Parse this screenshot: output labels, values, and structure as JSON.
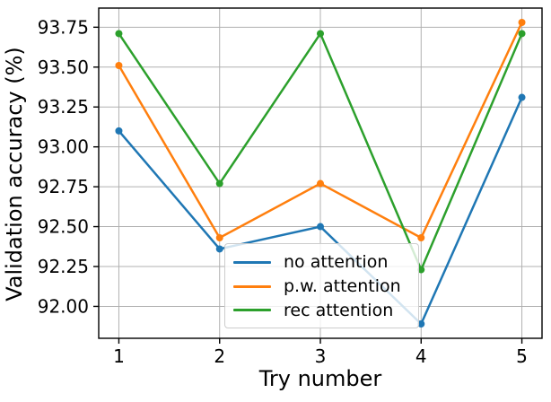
{
  "chart_data": {
    "type": "line",
    "title": "",
    "xlabel": "Try number",
    "ylabel": "Validation accuracy (%)",
    "x": [
      1,
      2,
      3,
      4,
      5
    ],
    "xtick_labels": [
      "1",
      "2",
      "3",
      "4",
      "5"
    ],
    "yticks": [
      92.0,
      92.25,
      92.5,
      92.75,
      93.0,
      93.25,
      93.5,
      93.75
    ],
    "ytick_labels": [
      "92.00",
      "92.25",
      "92.50",
      "92.75",
      "93.00",
      "93.25",
      "93.50",
      "93.75"
    ],
    "xlim": [
      0.8,
      5.2
    ],
    "ylim": [
      91.8,
      93.87
    ],
    "grid": true,
    "legend_position": "lower center-right inside axes",
    "series": [
      {
        "name": "no attention",
        "color": "#1f77b4",
        "values": [
          93.1,
          92.36,
          92.5,
          91.89,
          93.31
        ]
      },
      {
        "name": "p.w. attention",
        "color": "#ff7f0e",
        "values": [
          93.51,
          92.43,
          92.77,
          92.43,
          93.78
        ]
      },
      {
        "name": "rec attention",
        "color": "#2ca02c",
        "values": [
          93.71,
          92.77,
          93.71,
          92.23,
          93.71
        ]
      }
    ]
  },
  "style": {
    "grid_color": "#b0b0b0",
    "spine_color": "#000000",
    "tick_label_color": "#000000",
    "marker_radius": 4,
    "line_width": 2.5
  }
}
